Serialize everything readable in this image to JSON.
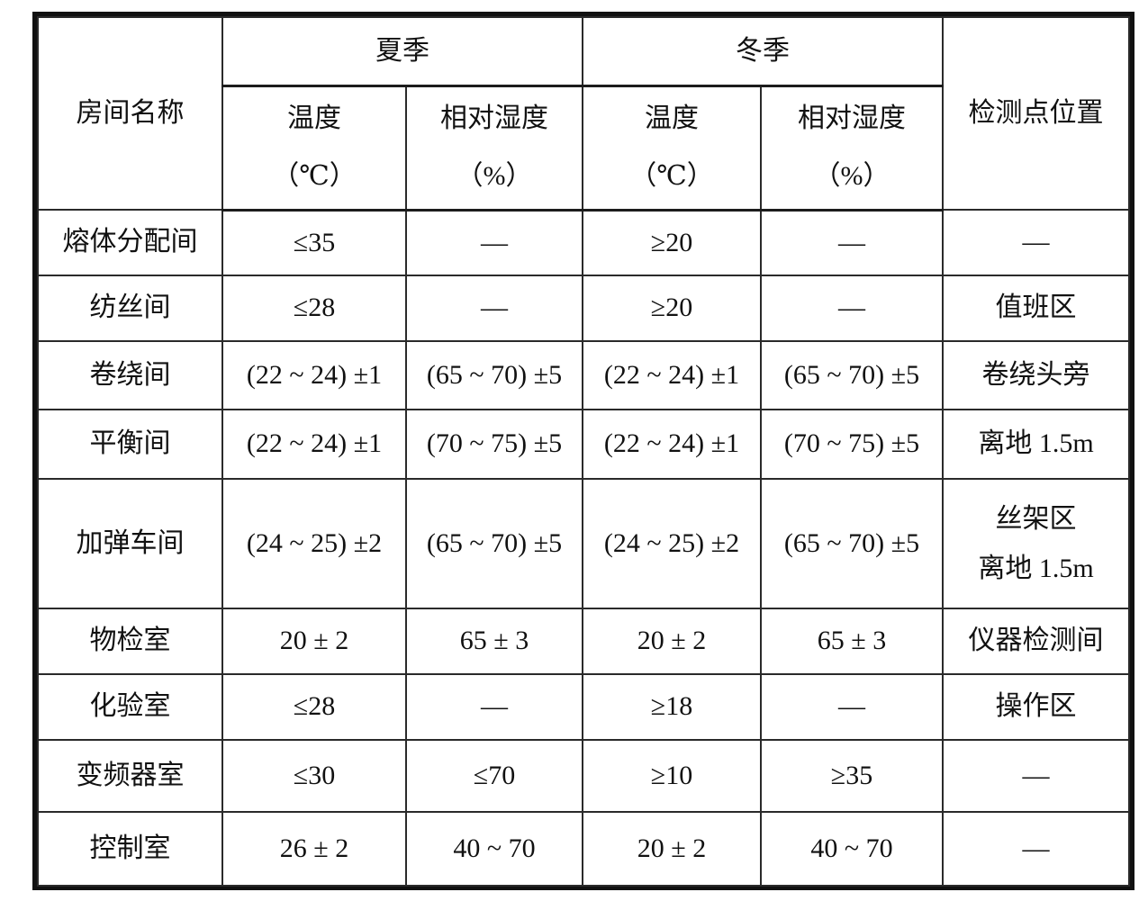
{
  "table": {
    "header": {
      "room": "房间名称",
      "summer": "夏季",
      "winter": "冬季",
      "location": "检测点位置",
      "temp_label": "温度",
      "temp_unit": "（℃）",
      "humidity_label": "相对湿度",
      "humidity_unit": "（%）"
    },
    "rows": [
      {
        "room": "熔体分配间",
        "summer_temp": "≤35",
        "summer_rh": "—",
        "winter_temp": "≥20",
        "winter_rh": "—",
        "location": "—"
      },
      {
        "room": "纺丝间",
        "summer_temp": "≤28",
        "summer_rh": "—",
        "winter_temp": "≥20",
        "winter_rh": "—",
        "location": "值班区"
      },
      {
        "room": "卷绕间",
        "summer_temp": "(22 ~ 24) ±1",
        "summer_rh": "(65 ~ 70) ±5",
        "winter_temp": "(22 ~ 24) ±1",
        "winter_rh": "(65 ~ 70) ±5",
        "location": "卷绕头旁"
      },
      {
        "room": "平衡间",
        "summer_temp": "(22 ~ 24) ±1",
        "summer_rh": "(70 ~ 75) ±5",
        "winter_temp": "(22 ~ 24) ±1",
        "winter_rh": "(70 ~ 75) ±5",
        "location": "离地 1.5m"
      },
      {
        "room": "加弹车间",
        "summer_temp": "(24 ~ 25) ±2",
        "summer_rh": "(65 ~ 70) ±5",
        "winter_temp": "(24 ~ 25) ±2",
        "winter_rh": "(65 ~ 70) ±5",
        "location": [
          "丝架区",
          "离地 1.5m"
        ]
      },
      {
        "room": "物检室",
        "summer_temp": "20 ± 2",
        "summer_rh": "65 ± 3",
        "winter_temp": "20 ± 2",
        "winter_rh": "65 ± 3",
        "location": "仪器检测间"
      },
      {
        "room": "化验室",
        "summer_temp": "≤28",
        "summer_rh": "—",
        "winter_temp": "≥18",
        "winter_rh": "—",
        "location": "操作区"
      },
      {
        "room": "变频器室",
        "summer_temp": "≤30",
        "summer_rh": "≤70",
        "winter_temp": "≥10",
        "winter_rh": "≥35",
        "location": "—"
      },
      {
        "room": "控制室",
        "summer_temp": "26 ± 2",
        "summer_rh": "40 ~ 70",
        "winter_temp": "20 ± 2",
        "winter_rh": "40 ~ 70",
        "location": "—"
      }
    ]
  }
}
